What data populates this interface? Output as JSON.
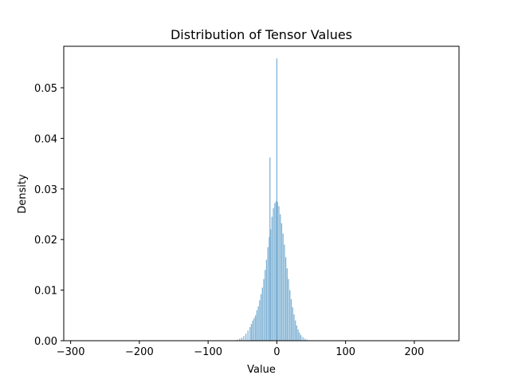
{
  "chart_data": {
    "type": "bar",
    "title": "Distribution of Tensor Values",
    "xlabel": "Value",
    "ylabel": "Density",
    "xlim": [
      -310,
      265
    ],
    "ylim": [
      0,
      0.0582
    ],
    "xticks": [
      -300,
      -200,
      -100,
      0,
      100,
      200
    ],
    "xtick_labels": [
      "−300",
      "−200",
      "−100",
      "0",
      "100",
      "200"
    ],
    "yticks": [
      0,
      0.01,
      0.02,
      0.03,
      0.04,
      0.05
    ],
    "ytick_labels": [
      "0.00",
      "0.01",
      "0.02",
      "0.03",
      "0.04",
      "0.05"
    ],
    "grid": false,
    "bar_color": "#7fb2d5",
    "series": [
      {
        "bins": [
          {
            "x": -60,
            "y": 0.0001
          },
          {
            "x": -57,
            "y": 0.0002
          },
          {
            "x": -54,
            "y": 0.0004
          },
          {
            "x": -51,
            "y": 0.0006
          },
          {
            "x": -48,
            "y": 0.0009
          },
          {
            "x": -45,
            "y": 0.0014
          },
          {
            "x": -42,
            "y": 0.002
          },
          {
            "x": -39,
            "y": 0.0027
          },
          {
            "x": -37,
            "y": 0.0033
          },
          {
            "x": -35,
            "y": 0.004
          },
          {
            "x": -33,
            "y": 0.0045
          },
          {
            "x": -31,
            "y": 0.005
          },
          {
            "x": -29,
            "y": 0.006
          },
          {
            "x": -27,
            "y": 0.0068
          },
          {
            "x": -25,
            "y": 0.008
          },
          {
            "x": -23,
            "y": 0.0092
          },
          {
            "x": -21,
            "y": 0.0105
          },
          {
            "x": -19,
            "y": 0.0122
          },
          {
            "x": -17,
            "y": 0.014
          },
          {
            "x": -15,
            "y": 0.016
          },
          {
            "x": -13,
            "y": 0.0185
          },
          {
            "x": -11,
            "y": 0.0205
          },
          {
            "x": -10,
            "y": 0.0362
          },
          {
            "x": -9,
            "y": 0.022
          },
          {
            "x": -7,
            "y": 0.0245
          },
          {
            "x": -5,
            "y": 0.0262
          },
          {
            "x": -3,
            "y": 0.0272
          },
          {
            "x": -1,
            "y": 0.0276
          },
          {
            "x": 0,
            "y": 0.0558
          },
          {
            "x": 1,
            "y": 0.0274
          },
          {
            "x": 3,
            "y": 0.0266
          },
          {
            "x": 5,
            "y": 0.025
          },
          {
            "x": 7,
            "y": 0.0232
          },
          {
            "x": 9,
            "y": 0.0212
          },
          {
            "x": 11,
            "y": 0.019
          },
          {
            "x": 13,
            "y": 0.0165
          },
          {
            "x": 15,
            "y": 0.0143
          },
          {
            "x": 17,
            "y": 0.0122
          },
          {
            "x": 19,
            "y": 0.01
          },
          {
            "x": 21,
            "y": 0.0082
          },
          {
            "x": 23,
            "y": 0.0066
          },
          {
            "x": 25,
            "y": 0.0052
          },
          {
            "x": 27,
            "y": 0.004
          },
          {
            "x": 29,
            "y": 0.003
          },
          {
            "x": 31,
            "y": 0.0022
          },
          {
            "x": 33,
            "y": 0.0016
          },
          {
            "x": 35,
            "y": 0.0011
          },
          {
            "x": 38,
            "y": 0.0007
          },
          {
            "x": 41,
            "y": 0.0004
          },
          {
            "x": 44,
            "y": 0.0002
          },
          {
            "x": 48,
            "y": 0.0001
          },
          {
            "x": 52,
            "y": 5e-05
          }
        ]
      }
    ]
  }
}
